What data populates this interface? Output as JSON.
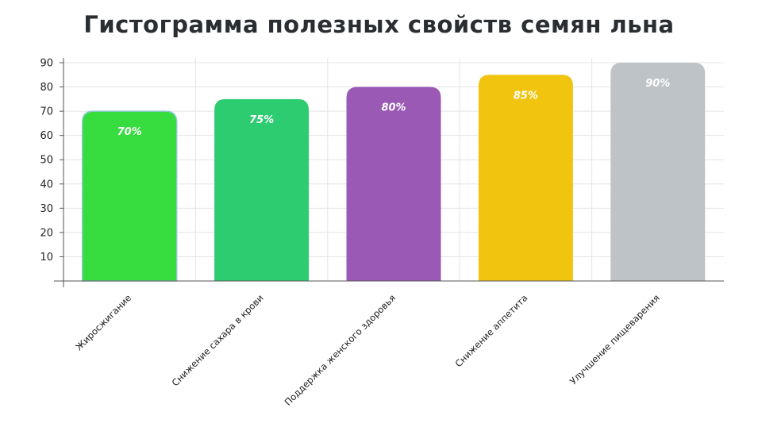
{
  "chart_data": {
    "type": "bar",
    "title": "Гистограмма полезных свойств семян льна",
    "xlabel": "",
    "ylabel": "",
    "ylim": [
      0,
      90
    ],
    "yticks": [
      10,
      20,
      30,
      40,
      50,
      60,
      70,
      80,
      90
    ],
    "grid": true,
    "categories": [
      "Жиросжигание",
      "Снижение сахара в крови",
      "Поддержка женского здоровья",
      "Снижение аппетита",
      "Улучшение пищеварения"
    ],
    "values": [
      70,
      75,
      80,
      85,
      90
    ],
    "data_labels": [
      "70%",
      "75%",
      "80%",
      "85%",
      "90%"
    ],
    "colors": [
      "#37dc3f",
      "#2ecc71",
      "#9b59b6",
      "#f1c40f",
      "#bdc3c7"
    ]
  }
}
